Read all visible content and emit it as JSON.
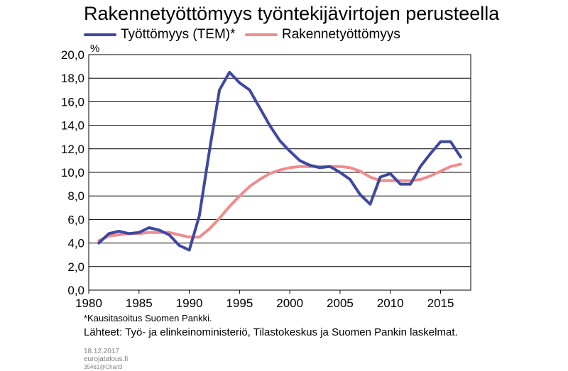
{
  "chart_data": {
    "type": "line",
    "title": "Rakennetyöttömyys työntekijävirtojen perusteella",
    "ylabel": "%",
    "xlim": [
      1980,
      2018
    ],
    "ylim": [
      0,
      20
    ],
    "x_ticks": [
      "1980",
      "1985",
      "1990",
      "1995",
      "2000",
      "2005",
      "2010",
      "2015"
    ],
    "y_ticks": [
      "0,0",
      "2,0",
      "4,0",
      "6,0",
      "8,0",
      "10,0",
      "12,0",
      "14,0",
      "16,0",
      "18,0",
      "20,0"
    ],
    "grid": true,
    "legend": "top",
    "series": [
      {
        "name": "Työttömyys (TEM)*",
        "color": "#3f48a0",
        "x": [
          1981,
          1982,
          1983,
          1984,
          1985,
          1986,
          1987,
          1988,
          1989,
          1990,
          1991,
          1992,
          1993,
          1994,
          1995,
          1996,
          1997,
          1998,
          1999,
          2000,
          2001,
          2002,
          2003,
          2004,
          2005,
          2006,
          2007,
          2008,
          2009,
          2010,
          2011,
          2012,
          2013,
          2014,
          2015,
          2016,
          2017
        ],
        "values": [
          4.0,
          4.8,
          5.0,
          4.8,
          4.9,
          5.3,
          5.1,
          4.7,
          3.8,
          3.4,
          6.3,
          11.8,
          17.0,
          18.5,
          17.6,
          17.0,
          15.5,
          14.0,
          12.7,
          11.8,
          11.0,
          10.6,
          10.4,
          10.5,
          10.0,
          9.4,
          8.1,
          7.3,
          9.6,
          9.9,
          9.0,
          9.0,
          10.5,
          11.6,
          12.6,
          12.6,
          11.3
        ]
      },
      {
        "name": "Rakennetyöttömyys",
        "color": "#f08c8c",
        "x": [
          1981,
          1982,
          1983,
          1984,
          1985,
          1986,
          1987,
          1988,
          1989,
          1990,
          1991,
          1992,
          1993,
          1994,
          1995,
          1996,
          1997,
          1998,
          1999,
          2000,
          2001,
          2002,
          2003,
          2004,
          2005,
          2006,
          2007,
          2008,
          2009,
          2010,
          2011,
          2012,
          2013,
          2014,
          2015,
          2016,
          2017
        ],
        "values": [
          4.2,
          4.6,
          4.7,
          4.8,
          4.8,
          4.9,
          4.9,
          4.9,
          4.7,
          4.5,
          4.5,
          5.2,
          6.1,
          7.1,
          8.0,
          8.8,
          9.4,
          9.9,
          10.2,
          10.4,
          10.5,
          10.5,
          10.5,
          10.5,
          10.5,
          10.4,
          10.1,
          9.6,
          9.3,
          9.3,
          9.3,
          9.3,
          9.4,
          9.7,
          10.1,
          10.5,
          10.7
        ]
      }
    ],
    "footnote": "*Kausitasoitus Suomen Pankki.",
    "sources": "Lähteet: Työ- ja elinkeinoministeriö, Tilastokeskus ja Suomen Pankin laskelmat."
  },
  "meta": {
    "date": "18.12.2017",
    "site": "eurojatalous.fi",
    "code": "35461@Chart3"
  }
}
